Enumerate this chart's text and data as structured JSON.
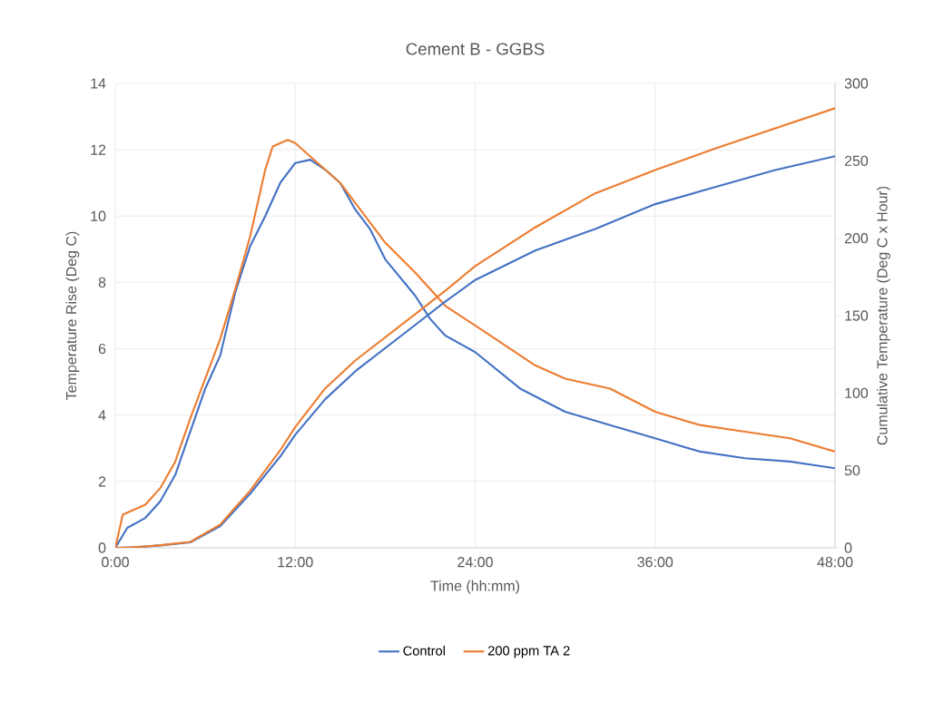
{
  "chart_data": {
    "type": "line",
    "title": "Cement B - GGBS",
    "xlabel": "Time (hh:mm)",
    "ylabel": "Temperature  Rise (Deg C)",
    "y2label": "Cumulative Temperature  (Deg C x Hour)",
    "xlim": [
      0,
      48
    ],
    "xticks": [
      {
        "value": 0,
        "label": "0:00"
      },
      {
        "value": 12,
        "label": "12:00"
      },
      {
        "value": 24,
        "label": "24:00"
      },
      {
        "value": 36,
        "label": "36:00"
      },
      {
        "value": 48,
        "label": "48:00"
      }
    ],
    "ylim": [
      0,
      14
    ],
    "yticks": [
      0,
      2,
      4,
      6,
      8,
      10,
      12,
      14
    ],
    "y2lim": [
      0,
      300
    ],
    "y2ticks": [
      0,
      50,
      100,
      150,
      200,
      250,
      300
    ],
    "grid": true,
    "legend": "bottom",
    "series": [
      {
        "name": "Control",
        "color": "#4472c4",
        "x": [
          0,
          0.8,
          2,
          3,
          4,
          5,
          6,
          7,
          8,
          9,
          10,
          11,
          12,
          13,
          14,
          15,
          16,
          17,
          18,
          20,
          21,
          22,
          24,
          27,
          30,
          33,
          36,
          39,
          42,
          45,
          48
        ],
        "values": [
          0,
          0.6,
          0.9,
          1.4,
          2.2,
          3.5,
          4.8,
          5.8,
          7.7,
          9.1,
          10,
          11,
          11.6,
          11.7,
          11.4,
          11,
          10.2,
          9.6,
          8.7,
          7.6,
          6.9,
          6.4,
          5.9,
          4.8,
          4.1,
          3.7,
          3.3,
          2.9,
          2.7,
          2.6,
          2.4
        ]
      },
      {
        "name": "200 ppm TA 2",
        "color": "#ed7d31",
        "x": [
          0,
          0.5,
          1,
          2,
          3,
          4,
          5,
          6,
          7,
          8,
          9,
          10,
          10.5,
          11.5,
          12,
          13,
          14,
          15,
          16,
          17,
          18,
          20,
          22,
          24,
          26,
          28,
          30,
          33,
          36,
          39,
          42,
          45,
          48
        ],
        "values": [
          0,
          1,
          1.1,
          1.3,
          1.8,
          2.6,
          3.9,
          5.1,
          6.3,
          7.8,
          9.4,
          11.4,
          12.1,
          12.3,
          12.2,
          11.8,
          11.4,
          11,
          10.4,
          9.8,
          9.2,
          8.3,
          7.3,
          6.7,
          6.1,
          5.5,
          5.1,
          4.8,
          4.1,
          3.7,
          3.5,
          3.3,
          2.9
        ]
      },
      {
        "color": "#4472c4",
        "axis": "y2",
        "x": [
          0,
          1,
          2,
          3,
          5,
          7,
          9,
          11,
          12,
          14,
          16,
          20,
          22,
          24,
          28,
          32,
          36,
          40,
          44,
          48
        ],
        "values": [
          0,
          0.3,
          0.8,
          1.5,
          3.5,
          14,
          35,
          59,
          73,
          96,
          114,
          144,
          159,
          173,
          192,
          206,
          222,
          233,
          244,
          253
        ]
      },
      {
        "color": "#ed7d31",
        "axis": "y2",
        "x": [
          0,
          1,
          2,
          3,
          5,
          7,
          9,
          11,
          12,
          14,
          16,
          20,
          22,
          24,
          28,
          32,
          36,
          40,
          44,
          48
        ],
        "values": [
          0,
          0.3,
          0.9,
          1.7,
          3.8,
          15,
          37,
          63,
          78,
          103,
          121,
          151,
          166,
          182,
          207,
          229,
          244,
          258,
          271,
          284
        ]
      }
    ]
  }
}
